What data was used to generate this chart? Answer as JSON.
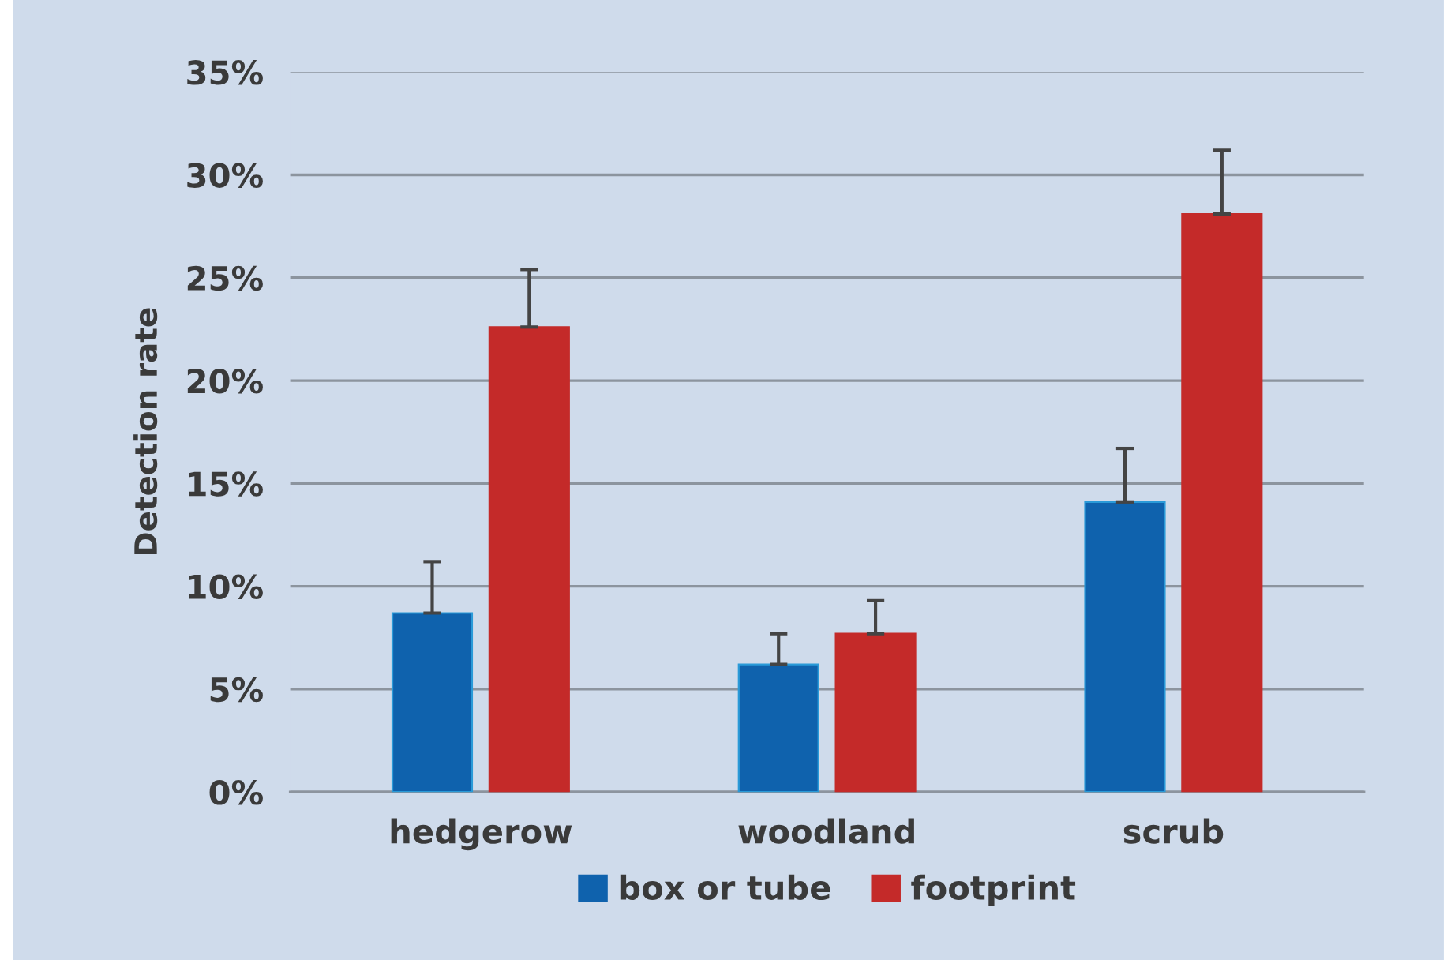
{
  "chart_data": {
    "type": "bar",
    "ylabel": "Detection rate",
    "categories": [
      "hedgerow",
      "woodland",
      "scrub"
    ],
    "series": [
      {
        "name": "box or tube",
        "color": "#0f62ad",
        "values": [
          8.7,
          6.2,
          14.1
        ],
        "errors": [
          2.5,
          1.5,
          2.6
        ]
      },
      {
        "name": "footprint",
        "color": "#c42a29",
        "values": [
          22.6,
          7.7,
          28.1
        ],
        "errors": [
          2.8,
          1.6,
          3.1
        ]
      }
    ],
    "ylim": [
      0,
      35
    ],
    "yticks": [
      {
        "value": 0,
        "label": "0%"
      },
      {
        "value": 5,
        "label": "5%"
      },
      {
        "value": 10,
        "label": "10%"
      },
      {
        "value": 15,
        "label": "15%"
      },
      {
        "value": 20,
        "label": "20%"
      },
      {
        "value": 25,
        "label": "25%"
      },
      {
        "value": 30,
        "label": "30%"
      },
      {
        "value": 35,
        "label": "35%"
      }
    ],
    "grid": "y",
    "legend": "bottom"
  }
}
